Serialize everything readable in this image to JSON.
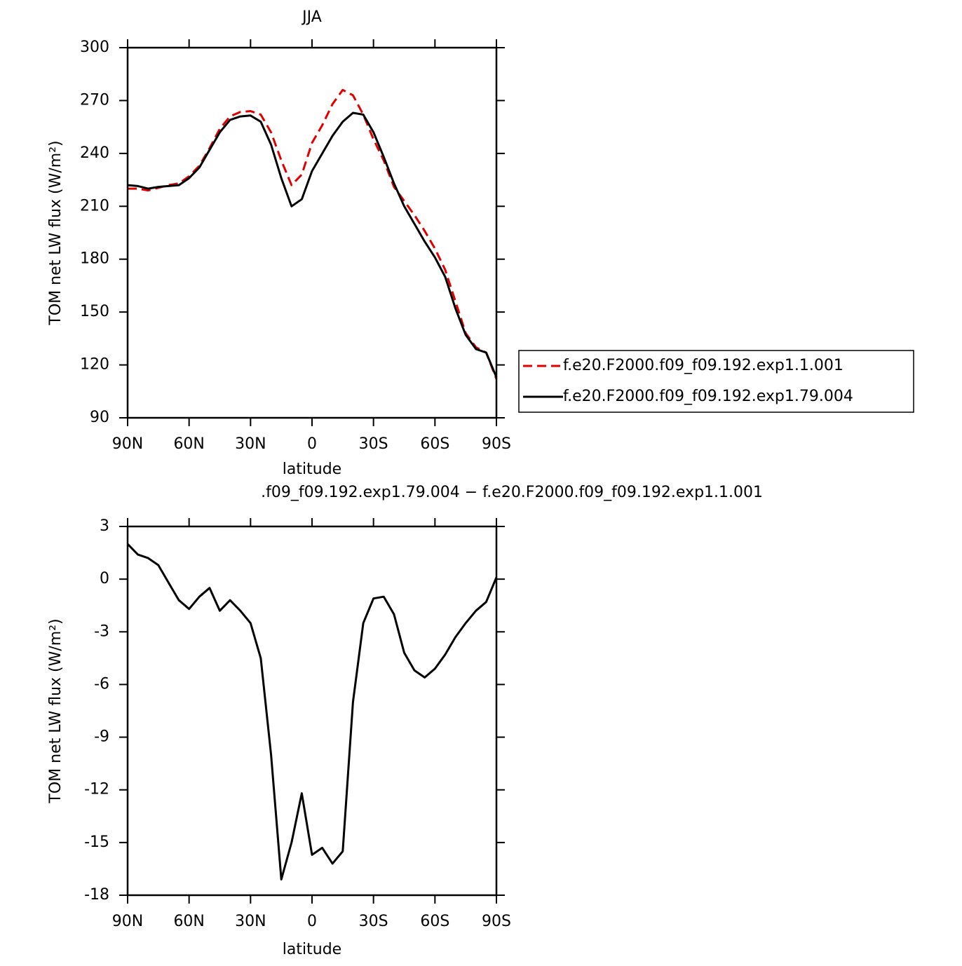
{
  "chart_data": [
    {
      "type": "line",
      "title": "JJA",
      "xlabel": "latitude",
      "ylabel": "TOM net LW flux (W/m²)",
      "x": [
        90,
        85,
        80,
        75,
        70,
        65,
        60,
        55,
        50,
        45,
        40,
        35,
        30,
        25,
        20,
        15,
        10,
        5,
        0,
        -5,
        -10,
        -15,
        -20,
        -25,
        -30,
        -35,
        -40,
        -45,
        -50,
        -55,
        -60,
        -65,
        -70,
        -75,
        -80,
        -85,
        -90
      ],
      "series": [
        {
          "name": "f.e20.F2000.f09_f09.192.exp1.1.001",
          "color": "#e00000",
          "dash": true,
          "values": [
            220,
            220,
            219,
            220.5,
            222,
            223,
            227,
            233,
            243,
            254,
            261,
            263.5,
            264,
            262,
            252,
            236,
            222,
            228,
            246,
            256,
            268,
            276,
            273,
            262,
            248,
            236,
            221,
            213,
            205,
            196,
            186,
            174,
            156,
            138,
            130,
            127,
            112
          ]
        },
        {
          "name": "f.e20.F2000.f09_f09.192.exp1.79.004",
          "color": "#000000",
          "dash": false,
          "values": [
            222,
            221.5,
            220,
            221,
            221.5,
            222,
            226,
            232,
            242,
            252,
            259,
            261,
            261.5,
            258,
            245,
            226,
            210,
            214,
            230,
            240,
            250,
            258,
            263,
            262,
            252,
            238,
            223,
            210,
            200,
            190,
            181,
            170,
            152,
            137,
            129,
            127,
            113
          ]
        }
      ],
      "xlim": [
        90,
        -90
      ],
      "xticks": [
        {
          "value": 90,
          "label": "90N"
        },
        {
          "value": 60,
          "label": "60N"
        },
        {
          "value": 30,
          "label": "30N"
        },
        0,
        {
          "value": -30,
          "label": "30S"
        },
        {
          "value": -60,
          "label": "60S"
        },
        {
          "value": -90,
          "label": "90S"
        }
      ],
      "ylim": [
        90,
        300
      ],
      "yticks": [
        90,
        120,
        150,
        180,
        210,
        240,
        270,
        300
      ],
      "legend": "right"
    },
    {
      "type": "line",
      "title": ".f09_f09.192.exp1.79.004 − f.e20.F2000.f09_f09.192.exp1.1.001",
      "xlabel": "latitude",
      "ylabel": "TOM net LW flux (W/m²)",
      "x": [
        90,
        85,
        80,
        75,
        70,
        65,
        60,
        55,
        50,
        45,
        40,
        35,
        30,
        25,
        20,
        15,
        10,
        5,
        0,
        -5,
        -10,
        -15,
        -20,
        -25,
        -30,
        -35,
        -40,
        -45,
        -50,
        -55,
        -60,
        -65,
        -70,
        -75,
        -80,
        -85,
        -90
      ],
      "values": [
        2.0,
        1.4,
        1.2,
        0.8,
        -0.2,
        -1.2,
        -1.7,
        -1.0,
        -0.5,
        -1.8,
        -1.2,
        -1.8,
        -2.5,
        -4.5,
        -10,
        -17.1,
        -15,
        -12.2,
        -15.7,
        -15.3,
        -16.2,
        -15.5,
        -7,
        -2.5,
        -1.1,
        -1.0,
        -2.0,
        -4.2,
        -5.2,
        -5.6,
        -5.1,
        -4.3,
        -3.3,
        -2.5,
        -1.8,
        -1.3,
        0.1
      ],
      "color": "#000000",
      "xlim": [
        90,
        -90
      ],
      "xticks": [
        {
          "value": 90,
          "label": "90N"
        },
        {
          "value": 60,
          "label": "60N"
        },
        {
          "value": 30,
          "label": "30N"
        },
        0,
        {
          "value": -30,
          "label": "30S"
        },
        {
          "value": -60,
          "label": "60S"
        },
        {
          "value": -90,
          "label": "90S"
        }
      ],
      "ylim": [
        -18,
        3
      ],
      "yticks": [
        -18,
        -15,
        -12,
        -9,
        -6,
        -3,
        0,
        3
      ]
    }
  ]
}
